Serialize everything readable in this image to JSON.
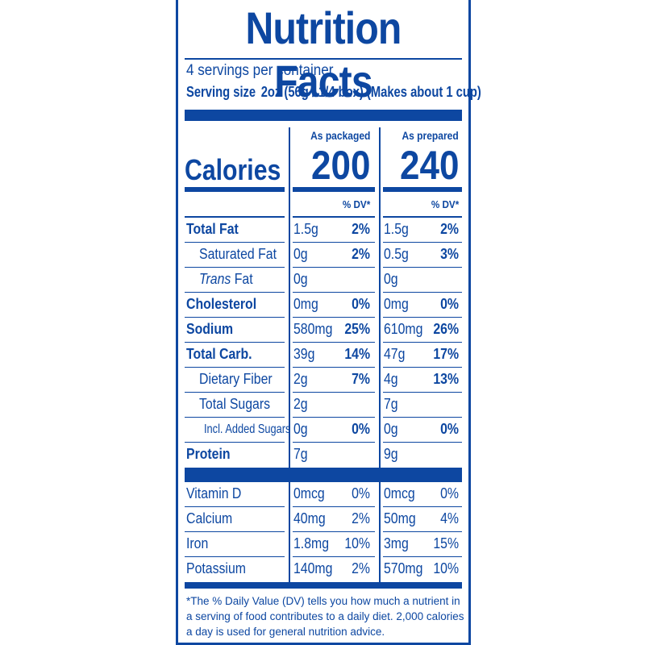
{
  "title": "Nutrition Facts",
  "servings_per_container": "4 servings per container",
  "serving_size_label": "Serving size",
  "serving_size_value": "2oz (56g / 1/4 box) (Makes about 1 cup)",
  "columns": {
    "packaged": "As packaged",
    "prepared": "As prepared"
  },
  "calories_label": "Calories",
  "calories": {
    "packaged": "200",
    "prepared": "240"
  },
  "dv_header": "% DV*",
  "nutrients": [
    {
      "label": "Total Fat",
      "style": "bold",
      "pk_amt": "1.5g",
      "pk_dv": "2%",
      "pr_amt": "1.5g",
      "pr_dv": "2%"
    },
    {
      "label": "Saturated Fat",
      "style": "indent",
      "pk_amt": "0g",
      "pk_dv": "2%",
      "pr_amt": "0.5g",
      "pr_dv": "3%"
    },
    {
      "label_italic": "Trans",
      "label": " Fat",
      "style": "indent",
      "pk_amt": "0g",
      "pk_dv": "",
      "pr_amt": "0g",
      "pr_dv": ""
    },
    {
      "label": "Cholesterol",
      "style": "bold",
      "pk_amt": "0mg",
      "pk_dv": "0%",
      "pr_amt": "0mg",
      "pr_dv": "0%"
    },
    {
      "label": "Sodium",
      "style": "bold",
      "pk_amt": "580mg",
      "pk_dv": "25%",
      "pr_amt": "610mg",
      "pr_dv": "26%"
    },
    {
      "label": "Total Carb.",
      "style": "bold",
      "pk_amt": "39g",
      "pk_dv": "14%",
      "pr_amt": "47g",
      "pr_dv": "17%"
    },
    {
      "label": "Dietary Fiber",
      "style": "indent",
      "pk_amt": "2g",
      "pk_dv": "7%",
      "pr_amt": "4g",
      "pr_dv": "13%"
    },
    {
      "label": "Total Sugars",
      "style": "indent",
      "pk_amt": "2g",
      "pk_dv": "",
      "pr_amt": "7g",
      "pr_dv": ""
    },
    {
      "label": "Incl. Added Sugars",
      "style": "indent2",
      "pk_amt": "0g",
      "pk_dv": "0%",
      "pr_amt": "0g",
      "pr_dv": "0%"
    },
    {
      "label": "Protein",
      "style": "bold",
      "pk_amt": "7g",
      "pk_dv": "",
      "pr_amt": "9g",
      "pr_dv": ""
    }
  ],
  "vitamins": [
    {
      "label": "Vitamin D",
      "pk_amt": "0mcg",
      "pk_dv": "0%",
      "pr_amt": "0mcg",
      "pr_dv": "0%"
    },
    {
      "label": "Calcium",
      "pk_amt": "40mg",
      "pk_dv": "2%",
      "pr_amt": "50mg",
      "pr_dv": "4%"
    },
    {
      "label": "Iron",
      "pk_amt": "1.8mg",
      "pk_dv": "10%",
      "pr_amt": "3mg",
      "pr_dv": "15%"
    },
    {
      "label": "Potassium",
      "pk_amt": "140mg",
      "pk_dv": "2%",
      "pr_amt": "570mg",
      "pr_dv": "10%"
    }
  ],
  "footnote": "*The % Daily Value (DV) tells you how much a nutrient in a serving of food contributes to a daily diet. 2,000 calories a day is used for general nutrition advice.",
  "colors": {
    "ink": "#0d47a1",
    "background": "#ffffff"
  }
}
